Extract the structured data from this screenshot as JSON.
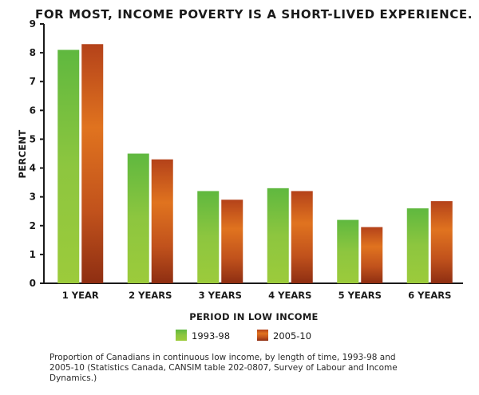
{
  "chart_data": {
    "type": "bar",
    "title": "FOR MOST, INCOME POVERTY IS A SHORT-LIVED EXPERIENCE.",
    "xlabel": "PERIOD IN LOW INCOME",
    "ylabel": "PERCENT",
    "ylim": [
      0,
      9
    ],
    "yticks": [
      "0",
      "1",
      "2",
      "3",
      "4",
      "5",
      "6",
      "7",
      "8",
      "9"
    ],
    "categories": [
      "1 YEAR",
      "2 YEARS",
      "3 YEARS",
      "4 YEARS",
      "5 YEARS",
      "6 YEARS"
    ],
    "series": [
      {
        "name": "1993-98",
        "color": "#7cc242",
        "values": [
          8.1,
          4.5,
          3.2,
          3.3,
          2.2,
          2.6
        ]
      },
      {
        "name": "2005-10",
        "color": "#c8501f",
        "values": [
          8.3,
          4.3,
          2.9,
          3.2,
          1.95,
          2.85
        ]
      }
    ],
    "grid": false,
    "legend": "bottom"
  },
  "caption": "Proportion of Canadians in continuous low income, by length of time, 1993-98 and 2005-10 (Statistics Canada, CANSIM table 202-0807, Survey of Labour and Income Dynamics.)"
}
